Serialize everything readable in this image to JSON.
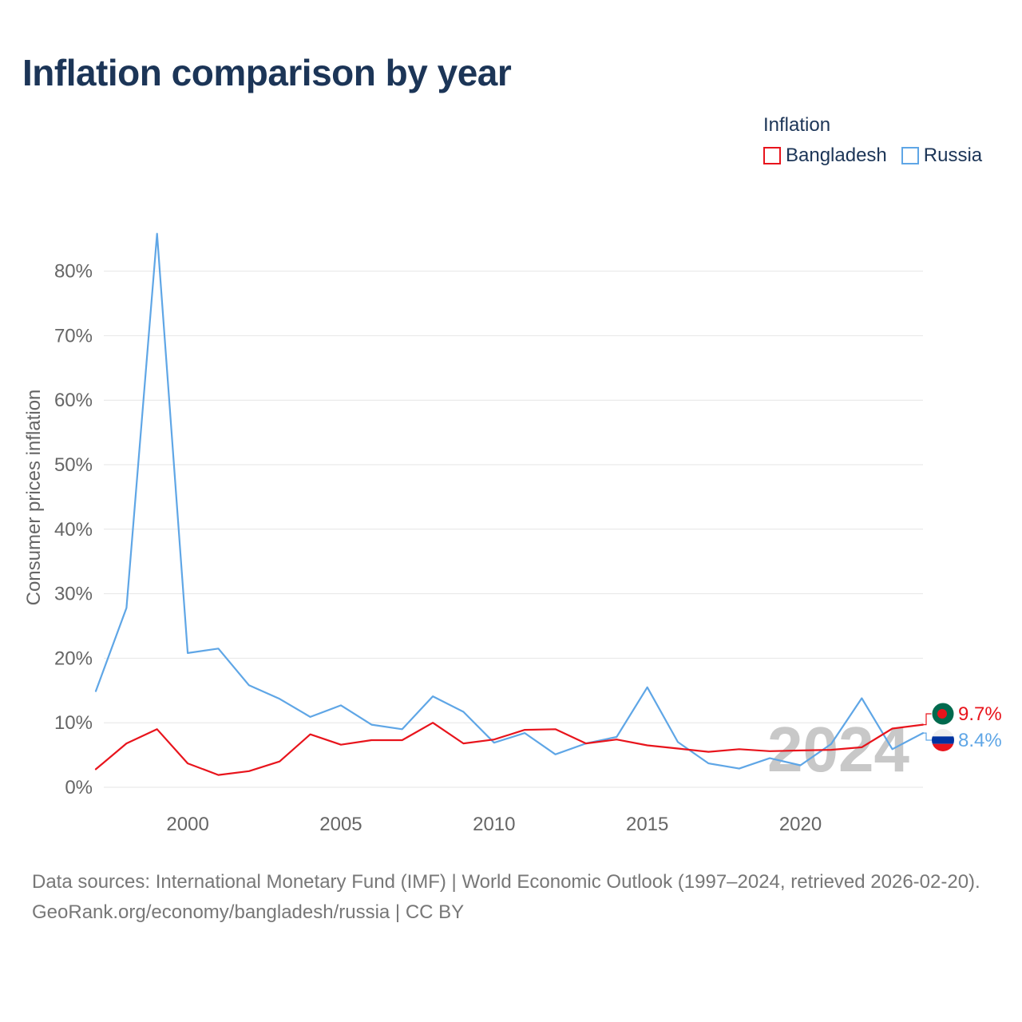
{
  "title": "Inflation comparison by year",
  "legend": {
    "title": "Inflation",
    "items": [
      {
        "name": "Bangladesh",
        "color": "#e8141c"
      },
      {
        "name": "Russia",
        "color": "#5fa6e6"
      }
    ]
  },
  "footer": {
    "sources": "Data sources: International Monetary Fund (IMF) | World Economic Outlook (1997–2024, retrieved 2026-02-20).",
    "attribution": "GeoRank.org/economy/bangladesh/russia | CC BY"
  },
  "chart_data": {
    "type": "line",
    "title": "Inflation comparison by year",
    "xlabel": "",
    "ylabel": "Consumer prices inflation",
    "xlim": [
      1997,
      2024
    ],
    "ylim": [
      0,
      80
    ],
    "y_ticks": [
      0,
      10,
      20,
      30,
      40,
      50,
      60,
      70,
      80
    ],
    "y_tick_labels": [
      "0%",
      "10%",
      "20%",
      "30%",
      "40%",
      "50%",
      "60%",
      "70%",
      "80%"
    ],
    "x_ticks": [
      2000,
      2005,
      2010,
      2015,
      2020
    ],
    "x_tick_labels": [
      "2000",
      "2005",
      "2010",
      "2015",
      "2020"
    ],
    "grid": true,
    "watermark_year": "2024",
    "x": [
      1997,
      1998,
      1999,
      2000,
      2001,
      2002,
      2003,
      2004,
      2005,
      2006,
      2007,
      2008,
      2009,
      2010,
      2011,
      2012,
      2013,
      2014,
      2015,
      2016,
      2017,
      2018,
      2019,
      2020,
      2021,
      2022,
      2023,
      2024
    ],
    "series": [
      {
        "name": "Bangladesh",
        "color": "#e8141c",
        "end_label": "9.7%",
        "flag": "bangladesh-flag",
        "values": [
          2.8,
          6.8,
          9.0,
          3.7,
          1.9,
          2.5,
          4.0,
          8.2,
          6.6,
          7.3,
          7.3,
          10.0,
          6.8,
          7.4,
          8.9,
          9.0,
          6.8,
          7.4,
          6.5,
          6.0,
          5.5,
          5.9,
          5.6,
          5.7,
          5.8,
          6.2,
          9.1,
          9.7
        ]
      },
      {
        "name": "Russia",
        "color": "#5fa6e6",
        "end_label": "8.4%",
        "flag": "russia-flag",
        "values": [
          14.9,
          27.8,
          85.8,
          20.8,
          21.5,
          15.8,
          13.7,
          10.9,
          12.7,
          9.7,
          9.0,
          14.1,
          11.7,
          6.9,
          8.4,
          5.1,
          6.8,
          7.8,
          15.5,
          7.0,
          3.7,
          2.9,
          4.5,
          3.4,
          6.7,
          13.8,
          5.9,
          8.4
        ]
      }
    ]
  }
}
